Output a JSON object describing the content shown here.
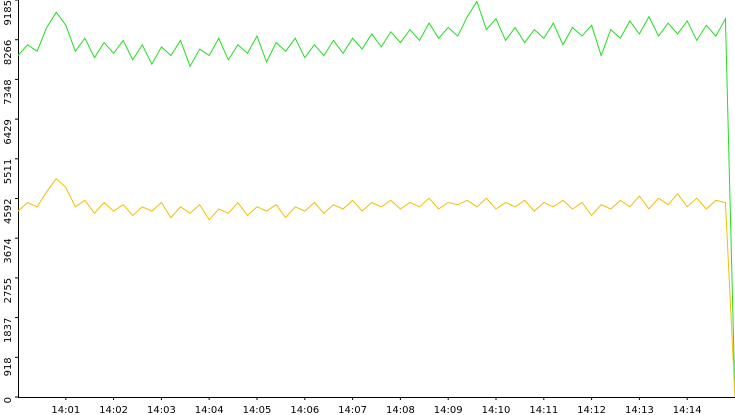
{
  "chart_data": {
    "type": "line",
    "x": [
      0,
      0.2,
      0.4,
      0.6,
      0.8,
      1,
      1.2,
      1.4,
      1.6,
      1.8,
      2,
      2.2,
      2.4,
      2.6,
      2.8,
      3,
      3.2,
      3.4,
      3.6,
      3.8,
      4,
      4.2,
      4.4,
      4.6,
      4.8,
      5,
      5.2,
      5.4,
      5.6,
      5.8,
      6,
      6.2,
      6.4,
      6.6,
      6.8,
      7,
      7.2,
      7.4,
      7.6,
      7.8,
      8,
      8.2,
      8.4,
      8.6,
      8.8,
      9,
      9.2,
      9.4,
      9.6,
      9.8,
      10,
      10.2,
      10.4,
      10.6,
      10.8,
      11,
      11.2,
      11.4,
      11.6,
      11.8,
      12,
      12.2,
      12.4,
      12.6,
      12.8,
      13,
      13.2,
      13.4,
      13.6,
      13.8,
      14,
      14.2,
      14.4,
      14.6,
      14.8,
      15
    ],
    "series": [
      {
        "color": "#22dd22",
        "values": [
          7900,
          8150,
          8000,
          8550,
          8900,
          8600,
          8000,
          8300,
          7850,
          8200,
          7950,
          8250,
          7800,
          8150,
          7700,
          8100,
          7900,
          8250,
          7650,
          8050,
          7900,
          8300,
          7800,
          8150,
          7950,
          8350,
          7750,
          8200,
          8000,
          8300,
          7850,
          8150,
          7900,
          8250,
          7950,
          8300,
          8050,
          8400,
          8100,
          8450,
          8200,
          8500,
          8250,
          8650,
          8300,
          8550,
          8350,
          8800,
          9150,
          8500,
          8750,
          8250,
          8550,
          8200,
          8500,
          8300,
          8650,
          8150,
          8550,
          8350,
          8600,
          7900,
          8500,
          8300,
          8700,
          8400,
          8800,
          8350,
          8650,
          8400,
          8700,
          8250,
          8600,
          8350,
          8750,
          0
        ]
      },
      {
        "color": "#f0c000",
        "values": [
          4300,
          4500,
          4400,
          4750,
          5050,
          4850,
          4400,
          4550,
          4250,
          4500,
          4300,
          4450,
          4200,
          4400,
          4300,
          4500,
          4150,
          4400,
          4250,
          4450,
          4100,
          4350,
          4250,
          4500,
          4200,
          4400,
          4300,
          4450,
          4150,
          4400,
          4300,
          4500,
          4250,
          4450,
          4350,
          4550,
          4300,
          4500,
          4400,
          4550,
          4350,
          4500,
          4400,
          4600,
          4350,
          4500,
          4450,
          4550,
          4400,
          4600,
          4350,
          4500,
          4400,
          4550,
          4300,
          4500,
          4400,
          4550,
          4350,
          4500,
          4200,
          4450,
          4350,
          4550,
          4400,
          4650,
          4350,
          4600,
          4450,
          4700,
          4400,
          4600,
          4350,
          4550,
          4500,
          0
        ]
      }
    ],
    "xlim": [
      0,
      15
    ],
    "xticks": [
      {
        "value": 1,
        "label": "14:01"
      },
      {
        "value": 2,
        "label": "14:02"
      },
      {
        "value": 3,
        "label": "14:03"
      },
      {
        "value": 4,
        "label": "14:04"
      },
      {
        "value": 5,
        "label": "14:05"
      },
      {
        "value": 6,
        "label": "14:06"
      },
      {
        "value": 7,
        "label": "14:07"
      },
      {
        "value": 8,
        "label": "14:08"
      },
      {
        "value": 9,
        "label": "14:09"
      },
      {
        "value": 10,
        "label": "14:10"
      },
      {
        "value": 11,
        "label": "14:11"
      },
      {
        "value": 12,
        "label": "14:12"
      },
      {
        "value": 13,
        "label": "14:13"
      },
      {
        "value": 14,
        "label": "14:14"
      }
    ],
    "ylim": [
      0,
      9185
    ],
    "yticks": [
      0,
      918,
      1837,
      2755,
      3674,
      4592,
      5511,
      6429,
      7348,
      8266,
      9185
    ]
  }
}
